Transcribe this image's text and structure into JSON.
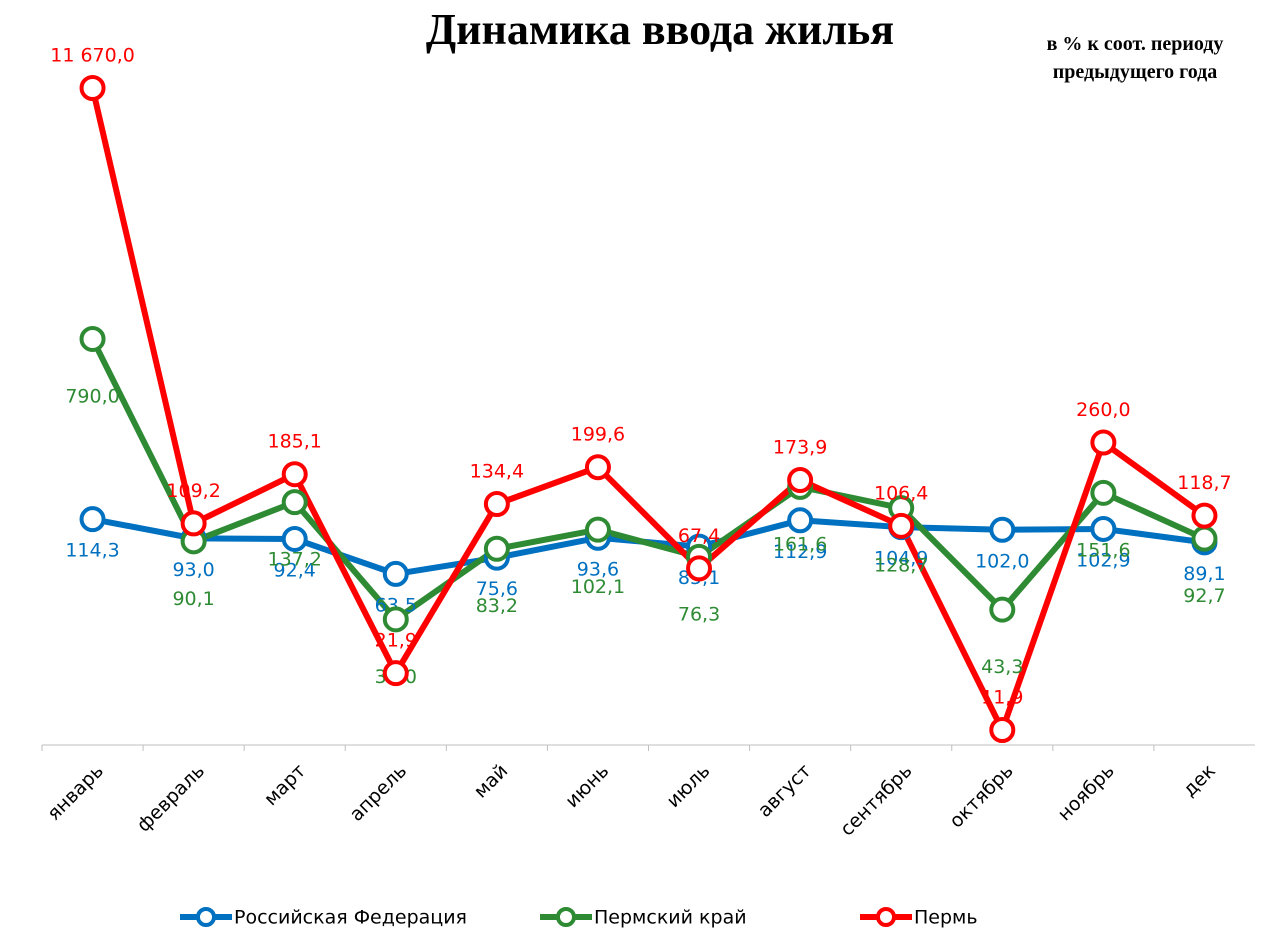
{
  "chart_data": {
    "type": "line",
    "title": "Динамика ввода жилья",
    "subtitle": "в % к соот. периоду предыдущего года",
    "categories": [
      "январь",
      "февраль",
      "март",
      "апрель",
      "май",
      "июнь",
      "июль",
      "август",
      "сентябрь",
      "октябрь",
      "ноябрь",
      "дек"
    ],
    "log_scale": true,
    "series": [
      {
        "name": "Российская Федерация",
        "color": "#0070c0",
        "values": [
          114.3,
          93.0,
          92.4,
          63.5,
          75.6,
          93.6,
          85.1,
          112.9,
          104.9,
          102.0,
          102.9,
          89.1
        ],
        "value_labels": [
          "114,3",
          "93,0",
          "92,4",
          "63,5",
          "75,6",
          "93,6",
          "85,1",
          "112,9",
          "104,9",
          "102,0",
          "102,9",
          "89,1"
        ]
      },
      {
        "name": "Пермский край",
        "color": "#2e8b34",
        "values": [
          790.0,
          90.1,
          137.2,
          39.0,
          83.2,
          102.1,
          76.3,
          161.6,
          128.7,
          43.3,
          151.6,
          92.7
        ],
        "value_labels": [
          "790,0",
          "90,1",
          "137,2",
          "39,0",
          "83,2",
          "102,1",
          "76,3",
          "161,6",
          "128,7",
          "43,3",
          "151,6",
          "92,7"
        ]
      },
      {
        "name": "Пермь",
        "color": "#ff0000",
        "values": [
          11670.0,
          109.2,
          185.1,
          21.9,
          134.4,
          199.6,
          67.4,
          173.9,
          106.4,
          11.9,
          260.0,
          118.7
        ],
        "value_labels": [
          "11 670,0",
          "109,2",
          "185,1",
          "21,9",
          "134,4",
          "199,6",
          "67,4",
          "173,9",
          "106,4",
          "11,9",
          "260,0",
          "118,7"
        ]
      }
    ]
  }
}
